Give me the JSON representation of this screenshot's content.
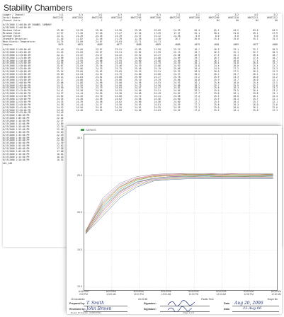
{
  "page_title": "Stability Chambers",
  "report": {
    "header_rows": [
      {
        "label": "Logger / Channel:",
        "cells": [
          "1/1",
          "2/1",
          "3/1",
          "4/1",
          "5/1",
          "6/1",
          "7/1",
          "1/2",
          "2/2",
          "3/2",
          "4/2",
          "5/2"
        ]
      },
      {
        "label": "Serial Number:",
        "cells": [
          "06672201",
          "06672202",
          "06672203",
          "06672204",
          "06672205",
          "06672206",
          "06672207",
          "06672208",
          "06672209",
          "06672210",
          "06672211",
          "06672212"
        ]
      },
      {
        "label": "Channel Units:",
        "cells": [
          "C",
          "C",
          "C",
          "C",
          "C",
          "C",
          "C",
          "C",
          "RH",
          "RH",
          "RH",
          "RH"
        ]
      }
    ],
    "section_label": "8/19/2006 11:00:00 AM     CHANNEL SUMMARY",
    "section_label2": "8/20/2006 12:00:00 AM",
    "summary_rows": [
      {
        "label": "Maximum Value:",
        "cells": [
          "25.66",
          "24.59",
          "25.00",
          "24.98",
          "25.03",
          "25.09",
          "24.93",
          "65.4",
          "65.1",
          "64.2",
          "63.6",
          "64.2"
        ]
      },
      {
        "label": "Minimum Value:",
        "cells": [
          "17.57",
          "17.20",
          "17.26",
          "17.27",
          "17.34",
          "17.39",
          "17.27",
          "52.1",
          "50.2",
          "51.0",
          "49.1",
          "47.9"
        ]
      },
      {
        "label": "Average Value:",
        "cells": [
          "24.11",
          "24.20",
          "24.26",
          "24.29",
          "24.37",
          "24.42",
          "24.38",
          "0.0",
          "0.0",
          "0.0",
          "0.0",
          "0.0"
        ]
      },
      {
        "label": "Standard Deviation:",
        "cells": [
          "11.40",
          "11.82",
          "11.46",
          "11.39",
          "11.36",
          "11.40",
          "26.7",
          "26.0",
          "15.4",
          "15.6",
          "15.1",
          "15.3"
        ]
      },
      {
        "label": "Mean Kinetic Temperature:",
        "cells": [
          "24.74",
          "23.09",
          "24.67",
          "23.63",
          "23.71",
          "24.71",
          "",
          "",
          "",
          "",
          "",
          ""
        ]
      },
      {
        "label": "Samples:",
        "cells": [
          "4075",
          "4081",
          "4089",
          "4077",
          "4088",
          "4089",
          "4086",
          "4079",
          "4081",
          "4089",
          "4077",
          "4088"
        ]
      }
    ],
    "data_rows": [
      {
        "ts": "8/19/2006 11:00:00 AM",
        "cells": [
          "21.49",
          "22.09",
          "22.67",
          "23.51",
          "22.82",
          "21.99",
          "22.13",
          "16.7",
          "26.3",
          "32.1",
          "32.7",
          "30.3"
        ]
      },
      {
        "ts": "8/19/2006 11:05:00 AM",
        "cells": [
          "21.49",
          "22.09",
          "22.67",
          "23.51",
          "22.82",
          "21.99",
          "22.13",
          "16.7",
          "26.3",
          "32.1",
          "32.7",
          "30.3"
        ]
      },
      {
        "ts": "8/19/2006 11:10:00 AM",
        "cells": [
          "22.11",
          "22.52",
          "24.27",
          "24.22",
          "23.52",
          "22.27",
          "22.58",
          "26.5",
          "27.5",
          "25.1",
          "26.4",
          "16.7"
        ]
      },
      {
        "ts": "8/19/2006 11:15:00 AM",
        "cells": [
          "23.98",
          "23.55",
          "24.08",
          "23.95",
          "24.60",
          "24.08",
          "24.09",
          "29.7",
          "26.7",
          "26.0",
          "27.4",
          "16.7"
        ]
      },
      {
        "ts": "8/19/2006 11:20:00 AM",
        "cells": [
          "23.98",
          "23.95",
          "24.08",
          "23.95",
          "24.60",
          "24.08",
          "24.09",
          "29.7",
          "26.7",
          "26.0",
          "27.4",
          "16.7"
        ]
      },
      {
        "ts": "8/19/2006 11:25:00 AM",
        "cells": [
          "24.54",
          "24.29",
          "24.75",
          "24.64",
          "24.33",
          "24.75",
          "24.49",
          "26.1",
          "26.4",
          "25.8",
          "26.4",
          "15.7"
        ]
      },
      {
        "ts": "8/19/2006 11:30:00 AM",
        "cells": [
          "25.07",
          "25.03",
          "25.36",
          "25.46",
          "24.19",
          "25.06",
          "24.93",
          "25.8",
          "24.4",
          "26.0",
          "25.4",
          "22.3"
        ]
      },
      {
        "ts": "8/19/2006 11:35:00 AM",
        "cells": [
          "25.11",
          "25.06",
          "24.33",
          "25.75",
          "25.46",
          "25.19",
          "25.06",
          "26.4",
          "24.9",
          "27.2",
          "26.3",
          "22.3"
        ]
      },
      {
        "ts": "8/19/2006 11:40:00 AM",
        "cells": [
          "25.14",
          "25.09",
          "25.62",
          "25.65",
          "25.53",
          "25.51",
          "25.32",
          "26.5",
          "26.0",
          "27.2",
          "26.2",
          "22.3"
        ]
      },
      {
        "ts": "8/19/2006 11:45:00 AM",
        "cells": [
          "25.09",
          "24.54",
          "24.52",
          "24.75",
          "24.80",
          "24.80",
          "24.37",
          "26.2",
          "26.2",
          "25.7",
          "26.1",
          "21.3"
        ]
      },
      {
        "ts": "8/19/2006 11:50:00 AM",
        "cells": [
          "25.11",
          "24.63",
          "24.81",
          "25.08",
          "25.09",
          "24.27",
          "25.78",
          "27.2",
          "25.9",
          "23.3",
          "26.0",
          "22.2"
        ]
      },
      {
        "ts": "8/19/2006 11:55:00 AM",
        "cells": [
          "25.17",
          "24.68",
          "24.81",
          "25.08",
          "25.10",
          "24.29",
          "25.66",
          "26.8",
          "25.9",
          "25.7",
          "26.0",
          "22.1"
        ]
      },
      {
        "ts": "8/19/2006 12:00:00 PM",
        "cells": [
          "25.08",
          "24.88",
          "24.98",
          "25.08",
          "24.98",
          "24.93",
          "24.93",
          "26.1",
          "25.8",
          "26.0",
          "25.4",
          "22.5"
        ]
      },
      {
        "ts": "8/19/2006 12:05:00 PM",
        "cells": [
          "24.71",
          "24.59",
          "24.78",
          "24.80",
          "24.73",
          "24.56",
          "24.88",
          "28.2",
          "25.7",
          "25.9",
          "25.7",
          "22.8"
        ]
      },
      {
        "ts": "8/19/2006 12:10:00 PM",
        "cells": [
          "24.50",
          "24.35",
          "24.79",
          "24.64",
          "24.67",
          "24.47",
          "24.81",
          "28.4",
          "25.6",
          "26.3",
          "26.5",
          "23.3"
        ]
      },
      {
        "ts": "8/19/2006 12:15:00 PM",
        "cells": [
          "24.41",
          "24.38",
          "24.68",
          "24.95",
          "24.66",
          "24.51",
          "24.84",
          "28.2",
          "25.6",
          "25.5",
          "26.4",
          "23.2"
        ]
      },
      {
        "ts": "8/19/2006 12:20:00 PM",
        "cells": [
          "24.37",
          "24.44",
          "24.56",
          "24.98",
          "24.68",
          "24.49",
          "24.62",
          "27.7",
          "25.8",
          "26.1",
          "25.8",
          "23.1"
        ]
      },
      {
        "ts": "8/19/2006 12:25:00 PM",
        "cells": [
          "24.62",
          "24.45",
          "24.70",
          "24.60",
          "24.72",
          "24.41",
          "24.58",
          "27.4",
          "25.3",
          "26.0",
          "26.1",
          "22.4"
        ]
      },
      {
        "ts": "8/19/2006 12:30:00 PM",
        "cells": [
          "24.35",
          "24.38",
          "24.58",
          "24.62",
          "24.66",
          "24.56",
          "24.60",
          "27.7",
          "25.5",
          "26.4",
          "25.7",
          "22.1"
        ]
      },
      {
        "ts": "8/19/2006 12:35:00 PM",
        "cells": [
          "24.35",
          "24.39",
          "24.58",
          "24.62",
          "24.66",
          "24.56",
          "24.60",
          "27.7",
          "25.5",
          "26.4",
          "25.7",
          "22.1"
        ]
      },
      {
        "ts": "8/19/2006 12:40:00 PM",
        "cells": [
          "24.38",
          "24.44",
          "24.57",
          "24.58",
          "24.63",
          "24.61",
          "24.59",
          "27.3",
          "25.8",
          "26.3",
          "26.0",
          "22.6"
        ]
      },
      {
        "ts": "8/19/2006 12:45:00 PM",
        "cells": [
          "24.42",
          "24.50",
          "24.61",
          "24.59",
          "24.61",
          "24.55",
          "24.55",
          "27.1",
          "25.6",
          "26.0",
          "26.1",
          "22.6"
        ]
      },
      {
        "ts": "8/19/2006 12:50:00 PM",
        "cells": [
          "24.49",
          "24.48",
          "24.55",
          "24.60",
          "24.60",
          "24.63",
          "24.52",
          "27.0",
          "25.5",
          "26.4",
          "25.8",
          "22.3"
        ]
      },
      {
        "ts": "8/19/2006 12:55:00 PM",
        "cells": [
          "24.49",
          "",
          "",
          "",
          "",
          "",
          "",
          "",
          "",
          "",
          "",
          ""
        ]
      },
      {
        "ts": "8/19/2006 1:00:00 PM",
        "cells": [
          "22.01",
          "",
          "",
          "",
          "",
          "",
          "",
          "",
          "",
          "",
          "",
          ""
        ]
      },
      {
        "ts": "8/19/2006 1:05:00 PM",
        "cells": [
          "22.04",
          "",
          "",
          "",
          "",
          "",
          "",
          "",
          "",
          "",
          "",
          ""
        ]
      },
      {
        "ts": "8/19/2006 1:10:00 PM",
        "cells": [
          "22.37",
          "",
          "",
          "",
          "",
          "",
          "",
          "",
          "",
          "",
          "",
          ""
        ]
      },
      {
        "ts": "8/19/2006 1:15:00 PM",
        "cells": [
          "22.89",
          "",
          "",
          "",
          "",
          "",
          "",
          "",
          "",
          "",
          "",
          ""
        ]
      },
      {
        "ts": "8/19/2006 1:20:00 PM",
        "cells": [
          "22.76",
          "",
          "",
          "",
          "",
          "",
          "",
          "",
          "",
          "",
          "",
          ""
        ]
      },
      {
        "ts": "8/19/2006 1:25:00 PM",
        "cells": [
          "22.90",
          "",
          "",
          "",
          "",
          "",
          "",
          "",
          "",
          "",
          "",
          ""
        ]
      },
      {
        "ts": "8/19/2006 1:30:00 PM",
        "cells": [
          "22.63",
          "",
          "",
          "",
          "",
          "",
          "",
          "",
          "",
          "",
          "",
          ""
        ]
      },
      {
        "ts": "8/19/2006 1:35:00 PM",
        "cells": [
          "22.49",
          "",
          "",
          "",
          "",
          "",
          "",
          "",
          "",
          "",
          "",
          ""
        ]
      },
      {
        "ts": "8/19/2006 1:40:00 PM",
        "cells": [
          "22.18",
          "",
          "",
          "",
          "",
          "",
          "",
          "",
          "",
          "",
          "",
          ""
        ]
      },
      {
        "ts": "8/19/2006 1:45:00 PM",
        "cells": [
          "21.90",
          "",
          "",
          "",
          "",
          "",
          "",
          "",
          "",
          "",
          "",
          ""
        ]
      },
      {
        "ts": "8/19/2006 1:50:00 PM",
        "cells": [
          "21.39",
          "",
          "",
          "",
          "",
          "",
          "",
          "",
          "",
          "",
          "",
          ""
        ]
      },
      {
        "ts": "8/19/2006 1:55:00 PM",
        "cells": [
          "22.62",
          "",
          "",
          "",
          "",
          "",
          "",
          "",
          "",
          "",
          "",
          ""
        ]
      },
      {
        "ts": "8/19/2006 2:00:00 PM",
        "cells": [
          "17.58",
          "",
          "",
          "",
          "",
          "",
          "",
          "",
          "",
          "",
          "",
          ""
        ]
      },
      {
        "ts": "8/19/2006 2:05:00 PM",
        "cells": [
          "17.08",
          "",
          "",
          "",
          "",
          "",
          "",
          "",
          "",
          "",
          "",
          ""
        ]
      },
      {
        "ts": "8/19/2006 2:10:00 PM",
        "cells": [
          "16.61",
          "",
          "",
          "",
          "",
          "",
          "",
          "",
          "",
          "",
          "",
          ""
        ]
      },
      {
        "ts": "8/19/2006 2:15:00 PM",
        "cells": [
          "16.43",
          "",
          "",
          "",
          "",
          "",
          "",
          "",
          "",
          "",
          "",
          ""
        ]
      },
      {
        "ts": "8/19/2006 2:20:00 PM",
        "cells": [
          "16.32",
          "",
          "",
          "",
          "",
          "",
          "",
          "",
          "",
          "",
          "",
          ""
        ]
      }
    ],
    "end_label": "ADJ_SAM"
  },
  "graph": {
    "legend_text": "SERIES",
    "colors": {
      "series": [
        "#3fa34d",
        "#d9534f",
        "#5b7fd6",
        "#e39b3a",
        "#9a5fc2",
        "#4bb6b6",
        "#c2a23a",
        "#e06fa0",
        "#7aa84f",
        "#8a8a8a",
        "#3a6ea8",
        "#c8623a"
      ]
    },
    "chart_data": {
      "type": "line",
      "y_ticks": [
        "30.0",
        "25.0",
        "20.0",
        "15.0",
        "10.0"
      ],
      "ylim": [
        10,
        30
      ],
      "x_ticks": [
        {
          "date": "8/19/2006",
          "time": "2:00 PM"
        },
        {
          "date": "8/20/2006",
          "time": "12:00 AM"
        },
        {
          "date": "8/20/2006",
          "time": "12:00 PM"
        },
        {
          "date": "8/21/2006",
          "time": "12:00 AM"
        },
        {
          "date": "8/21/2006",
          "time": "12:00 PM"
        },
        {
          "date": "8/22/2006",
          "time": "12:00 AM"
        },
        {
          "date": "8/22/2006",
          "time": "12:00 PM"
        },
        {
          "date": "8/23/2006",
          "time": "12:00 AM"
        }
      ],
      "series": [
        {
          "values": [
            17.6,
            21.0,
            23.2,
            24.4,
            24.9,
            25.1,
            25.2,
            25.2,
            25.2,
            25.1,
            25.1,
            25.2
          ]
        },
        {
          "values": [
            17.2,
            20.4,
            22.8,
            24.1,
            24.7,
            24.9,
            25.0,
            25.0,
            24.9,
            24.9,
            25.0,
            25.0
          ]
        },
        {
          "values": [
            17.3,
            20.8,
            23.0,
            24.2,
            24.7,
            24.9,
            24.9,
            25.0,
            24.9,
            24.9,
            24.9,
            25.0
          ]
        },
        {
          "values": [
            17.3,
            21.2,
            23.4,
            24.5,
            24.9,
            25.0,
            25.0,
            25.1,
            25.0,
            25.0,
            25.0,
            25.1
          ]
        },
        {
          "values": [
            17.3,
            20.2,
            22.6,
            23.9,
            24.5,
            24.7,
            24.8,
            24.8,
            24.8,
            24.8,
            24.8,
            24.8
          ]
        },
        {
          "values": [
            17.4,
            21.5,
            23.6,
            24.6,
            25.0,
            25.1,
            25.1,
            25.1,
            25.1,
            25.1,
            25.1,
            25.1
          ]
        },
        {
          "values": [
            17.3,
            19.9,
            22.3,
            23.7,
            24.4,
            24.6,
            24.7,
            24.7,
            24.7,
            24.7,
            24.7,
            24.7
          ]
        },
        {
          "values": [
            17.5,
            21.7,
            23.8,
            24.7,
            25.1,
            25.2,
            25.3,
            25.3,
            25.2,
            25.3,
            25.3,
            25.3
          ]
        },
        {
          "values": [
            17.4,
            20.6,
            22.9,
            24.1,
            24.6,
            24.8,
            24.9,
            24.9,
            24.9,
            24.9,
            24.9,
            24.9
          ]
        },
        {
          "values": [
            17.6,
            22.0,
            24.0,
            24.9,
            25.2,
            25.3,
            25.3,
            25.3,
            25.3,
            25.3,
            25.3,
            25.3
          ]
        },
        {
          "values": [
            17.2,
            19.6,
            22.0,
            23.5,
            24.3,
            24.5,
            24.6,
            24.6,
            24.6,
            24.6,
            24.6,
            24.6
          ]
        },
        {
          "values": [
            17.5,
            21.3,
            23.5,
            24.6,
            25.0,
            25.1,
            25.2,
            25.2,
            25.1,
            25.2,
            25.2,
            25.2
          ]
        }
      ]
    },
    "info_row": {
      "interval": "10 minute/div",
      "elapsed": "81:22:45",
      "zone": "Pacific Time",
      "units": "Graph file"
    },
    "signatures": {
      "prepared_label": "Prepared by:",
      "prepared_value": "T. Smith",
      "reviewed_label": "Reviewed by:",
      "reviewed_value": "John Brown",
      "signature_label": "Signature:",
      "date_label": "Date:",
      "date1": "Aug 20, 2006",
      "date2": "23-Aug-06"
    },
    "footer": {
      "left": "Report ID Number: 2128737814",
      "center": "Page 1 of 2"
    }
  }
}
